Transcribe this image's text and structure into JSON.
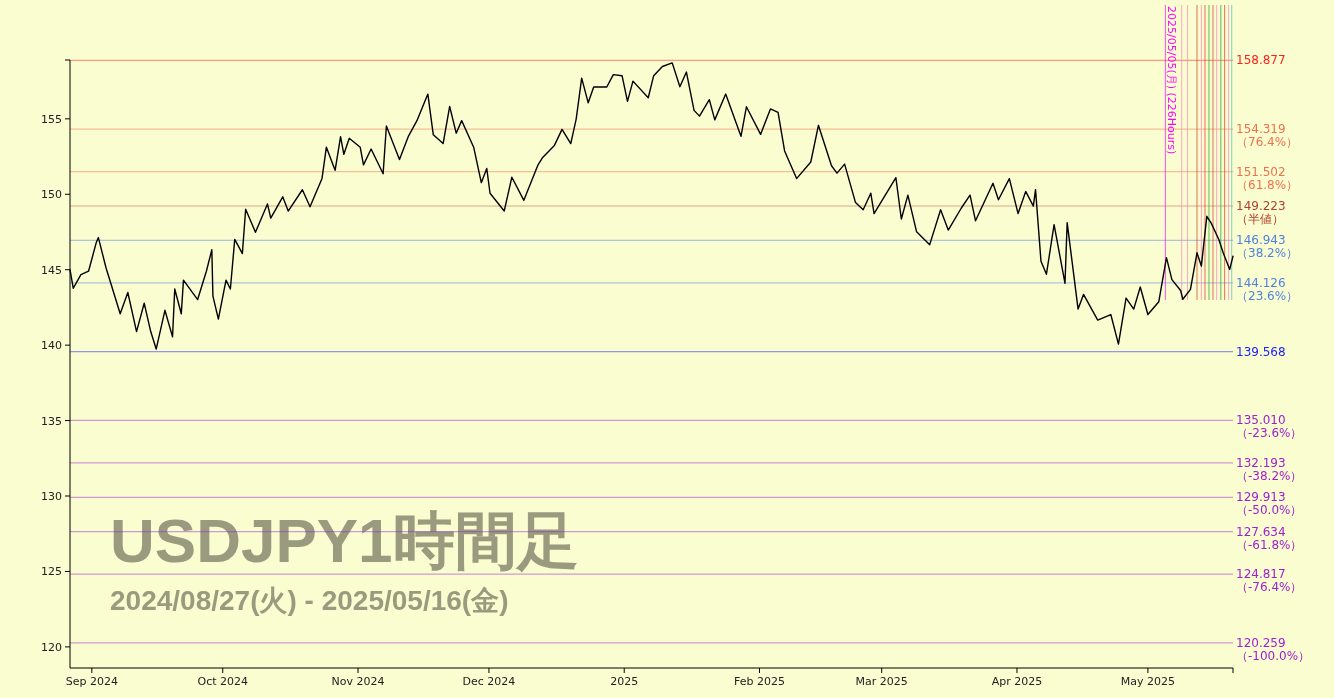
{
  "chart_data": {
    "type": "line",
    "title": "USDJPY1時間足",
    "subtitle": "2024/08/27(火) - 2025/05/16(金)",
    "x": [
      "2024-08-27T00:00",
      "2024-08-27T18:00",
      "2024-08-29T12:00",
      "2024-08-31T06:00",
      "2024-09-02T00:00",
      "2024-09-02T12:00",
      "2024-09-04T06:00",
      "2024-09-06T00:00",
      "2024-09-07T12:00",
      "2024-09-09T06:00",
      "2024-09-11T06:00",
      "2024-09-13T00:00",
      "2024-09-14T12:00",
      "2024-09-15T18:00",
      "2024-09-17T18:00",
      "2024-09-19T12:00",
      "2024-09-20T00:00",
      "2024-09-21T12:00",
      "2024-09-22T00:00",
      "2024-09-25T06:00",
      "2024-09-27T06:00",
      "2024-09-28T12:00",
      "2024-09-28T18:00",
      "2024-09-30T00:00",
      "2024-10-01T18:00",
      "2024-10-02T18:00",
      "2024-10-03T18:00",
      "2024-10-05T12:00",
      "2024-10-06T06:00",
      "2024-10-08T12:00",
      "2024-10-11T06:00",
      "2024-10-12T00:00",
      "2024-10-14T18:00",
      "2024-10-16T00:00",
      "2024-10-19T06:00",
      "2024-10-21T00:00",
      "2024-10-23T18:00",
      "2024-10-24T18:00",
      "2024-10-26T18:00",
      "2024-10-28T00:00",
      "2024-10-28T18:00",
      "2024-10-30T00:00",
      "2024-11-01T12:00",
      "2024-11-02T06:00",
      "2024-11-04T00:00",
      "2024-11-06T18:00",
      "2024-11-07T12:00",
      "2024-11-10T12:00",
      "2024-11-12T12:00",
      "2024-11-14T12:00",
      "2024-11-17T00:00",
      "2024-11-18T06:00",
      "2024-11-20T12:00",
      "2024-11-22T00:00",
      "2024-11-23T12:00",
      "2024-11-24T18:00",
      "2024-11-27T12:00",
      "2024-11-29T06:00",
      "2024-11-30T12:00",
      "2024-12-01T06:00",
      "2024-12-04T12:00",
      "2024-12-06T06:00",
      "2024-12-09T00:00",
      "2024-12-12T06:00",
      "2024-12-13T06:00",
      "2024-12-16T00:00",
      "2024-12-17T18:00",
      "2024-12-19T18:00",
      "2024-12-21T00:00",
      "2024-12-22T06:00",
      "2024-12-23T18:00",
      "2024-12-25T00:00",
      "2024-12-28T00:00",
      "2024-12-29T12:00",
      "2024-12-31T12:00",
      "2025-01-01T18:00",
      "2025-01-03T00:00",
      "2025-01-06T12:00",
      "2025-01-07T18:00",
      "2025-01-09T18:00",
      "2025-01-12T00:00",
      "2025-01-13T18:00",
      "2025-01-15T06:00",
      "2025-01-17T00:00",
      "2025-01-18T06:00",
      "2025-01-20T12:00",
      "2025-01-21T18:00",
      "2025-01-24T06:00",
      "2025-01-27T18:00",
      "2025-01-29T00:00",
      "2025-02-01T06:00",
      "2025-02-03T12:00",
      "2025-02-05T06:00",
      "2025-02-06T18:00",
      "2025-02-09T12:00",
      "2025-02-12T18:00",
      "2025-02-14T12:00",
      "2025-02-17T12:00",
      "2025-02-18T18:00",
      "2025-02-20T12:00",
      "2025-02-23T00:00",
      "2025-02-24T18:00",
      "2025-02-26T12:00",
      "2025-02-27T06:00",
      "2025-03-04T06:00",
      "2025-03-05T12:00",
      "2025-03-07T00:00",
      "2025-03-09T00:00",
      "2025-03-12T00:00",
      "2025-03-14T12:00",
      "2025-03-16T06:00",
      "2025-03-19T06:00",
      "2025-03-21T06:00",
      "2025-03-22T12:00",
      "2025-03-26T12:00",
      "2025-03-27T18:00",
      "2025-03-30T06:00",
      "2025-04-01T06:00",
      "2025-04-03T00:00",
      "2025-04-04T18:00",
      "2025-04-05T06:00",
      "2025-04-06T12:00",
      "2025-04-07T18:00",
      "2025-04-09T12:00",
      "2025-04-12T00:00",
      "2025-04-12T12:00",
      "2025-04-15T00:00",
      "2025-04-16T06:00",
      "2025-04-19T12:00",
      "2025-04-22T12:00",
      "2025-04-24T06:00",
      "2025-04-26T00:00",
      "2025-04-27T18:00",
      "2025-04-29T06:00",
      "2025-05-01T00:00",
      "2025-05-03T12:00",
      "2025-05-05T06:00",
      "2025-05-06T12:00",
      "2025-05-08T12:00",
      "2025-05-09T00:00",
      "2025-05-10T18:00",
      "2025-05-12T06:00",
      "2025-05-13T06:00",
      "2025-05-14T12:00",
      "2025-05-15T12:00",
      "2025-05-17T06:00",
      "2025-05-18T06:00",
      "2025-05-19T18:00",
      "2025-05-20T12:00"
    ],
    "series": [
      {
        "color": "#000000",
        "values": [
          145.0,
          143.77,
          144.67,
          144.9,
          146.78,
          147.13,
          145.13,
          143.49,
          142.08,
          143.49,
          140.9,
          142.78,
          140.9,
          139.74,
          142.31,
          140.55,
          143.72,
          142.08,
          144.31,
          143.02,
          144.9,
          146.32,
          143.25,
          141.73,
          144.31,
          143.72,
          147.01,
          146.07,
          149.01,
          147.48,
          149.36,
          148.42,
          149.83,
          148.89,
          150.3,
          149.17,
          151.05,
          153.12,
          151.59,
          153.82,
          152.65,
          153.71,
          153.12,
          151.95,
          153.0,
          151.36,
          154.53,
          152.3,
          153.82,
          154.88,
          156.64,
          153.94,
          153.36,
          155.82,
          154.05,
          154.88,
          153.12,
          150.77,
          151.71,
          150.07,
          148.89,
          151.13,
          149.6,
          151.95,
          152.42,
          153.24,
          154.3,
          153.36,
          155.0,
          157.7,
          156.06,
          157.11,
          157.11,
          157.93,
          157.86,
          156.16,
          157.5,
          156.4,
          157.86,
          158.47,
          158.71,
          157.13,
          158.1,
          155.56,
          155.18,
          156.27,
          154.93,
          156.64,
          153.84,
          155.8,
          153.97,
          155.66,
          155.43,
          152.87,
          151.04,
          152.14,
          154.57,
          151.89,
          151.4,
          152.0,
          149.45,
          148.97,
          150.07,
          148.72,
          151.1,
          148.36,
          149.94,
          147.51,
          146.66,
          148.97,
          147.63,
          149.09,
          149.94,
          148.24,
          150.73,
          149.64,
          151.04,
          148.72,
          150.19,
          149.21,
          150.31,
          145.56,
          144.7,
          147.99,
          144.1,
          148.12,
          142.39,
          143.36,
          141.66,
          142.03,
          140.07,
          143.12,
          142.39,
          143.85,
          142.03,
          142.88,
          145.8,
          144.34,
          143.62,
          143.04,
          143.7,
          146.12,
          145.24,
          148.54,
          148.09,
          147.0,
          146.12,
          145.02,
          145.9
        ]
      }
    ],
    "xlim": [
      "2024-08-27",
      "2025-05-20T12:00"
    ],
    "xticks": [
      {
        "value": "2024-09-01",
        "label": "Sep 2024"
      },
      {
        "value": "2024-10-01",
        "label": "Oct 2024"
      },
      {
        "value": "2024-11-01",
        "label": "Nov 2024"
      },
      {
        "value": "2024-12-01",
        "label": "Dec 2024"
      },
      {
        "value": "2025-01-01",
        "label": "2025"
      },
      {
        "value": "2025-02-01",
        "label": "Feb 2025"
      },
      {
        "value": "2025-03-01",
        "label": "Mar 2025"
      },
      {
        "value": "2025-04-01",
        "label": "Apr 2025"
      },
      {
        "value": "2025-05-01",
        "label": "May 2025"
      }
    ],
    "ylim": [
      118.6,
      158.9
    ],
    "yticks": [
      120,
      125,
      130,
      135,
      140,
      145,
      150,
      155
    ],
    "ref_lines": [
      {
        "axis": "y",
        "value": 158.877,
        "label": "158.877",
        "color": "#ff2020"
      },
      {
        "axis": "y",
        "value": 154.319,
        "label": "154.319 （76.4%）",
        "color": "#f07050"
      },
      {
        "axis": "y",
        "value": 151.502,
        "label": "151.502 （61.8%）",
        "color": "#f07050"
      },
      {
        "axis": "y",
        "value": 149.223,
        "label": "149.223 （半値）",
        "color": "#b04030"
      },
      {
        "axis": "y",
        "value": 146.943,
        "label": "146.943 （38.2%）",
        "color": "#5080e0"
      },
      {
        "axis": "y",
        "value": 144.126,
        "label": "144.126 （23.6%）",
        "color": "#5080e0"
      },
      {
        "axis": "y",
        "value": 139.568,
        "label": "139.568",
        "color": "#1a1aff"
      },
      {
        "axis": "y",
        "value": 135.01,
        "label": "135.010 （-23.6%）",
        "color": "#a020d0"
      },
      {
        "axis": "y",
        "value": 132.193,
        "label": "132.193 （-38.2%）",
        "color": "#a020d0"
      },
      {
        "axis": "y",
        "value": 129.913,
        "label": "129.913 （-50.0%）",
        "color": "#a020d0"
      },
      {
        "axis": "y",
        "value": 127.634,
        "label": "127.634 （-61.8%）",
        "color": "#a020d0"
      },
      {
        "axis": "y",
        "value": 124.817,
        "label": "124.817 （-76.4%）",
        "color": "#a020d0"
      },
      {
        "axis": "y",
        "value": 120.259,
        "label": "120.259 （-100.0%）",
        "color": "#a020d0"
      },
      {
        "axis": "x",
        "value": "2025-05-05",
        "label": "2025/05/05(月) (226Hours)",
        "color": "#ff00ff"
      },
      {
        "axis": "x",
        "value": "2025-05-08T18:00",
        "label": null,
        "color": "#ff80c0"
      },
      {
        "axis": "x",
        "value": "2025-05-10T02:00",
        "label": null,
        "color": "#ff80c0"
      },
      {
        "axis": "x",
        "value": "2025-05-12T06:00",
        "label": null,
        "color": "#e03030"
      },
      {
        "axis": "x",
        "value": "2025-05-13T06:00",
        "label": null,
        "color": "#ff80c0"
      },
      {
        "axis": "x",
        "value": "2025-05-14T02:00",
        "label": null,
        "color": "#e03030"
      },
      {
        "axis": "x",
        "value": "2025-05-15T00:00",
        "label": null,
        "color": "#20a020"
      },
      {
        "axis": "x",
        "value": "2025-05-15T22:00",
        "label": null,
        "color": "#e03030"
      },
      {
        "axis": "x",
        "value": "2025-05-16T18:00",
        "label": null,
        "color": "#ff80c0"
      },
      {
        "axis": "x",
        "value": "2025-05-17T17:00",
        "label": null,
        "color": "#20a020"
      },
      {
        "axis": "x",
        "value": "2025-05-18T14:00",
        "label": null,
        "color": "#e03030"
      },
      {
        "axis": "x",
        "value": "2025-05-19T12:00",
        "label": null,
        "color": "#ff80c0"
      },
      {
        "axis": "x",
        "value": "2025-05-20T05:00",
        "label": null,
        "color": "#40c0c0"
      }
    ]
  }
}
